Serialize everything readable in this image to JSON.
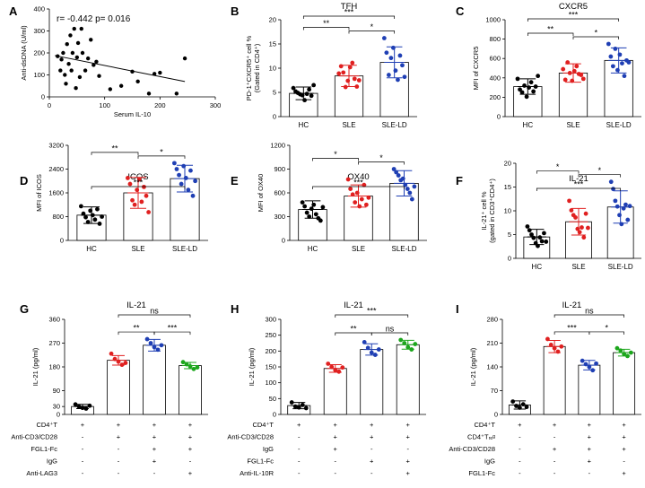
{
  "figure": {
    "panel_labels": [
      "A",
      "B",
      "C",
      "D",
      "E",
      "F",
      "G",
      "H",
      "I"
    ]
  },
  "colors": {
    "HC": "#000000",
    "SLE": "#e02020",
    "SLE-LD": "#1f3fb4",
    "green": "#1ca61c"
  },
  "chart_data": [
    {
      "id": "A",
      "type": "scatter",
      "annotation": "r= -0.442  p= 0.016",
      "xlabel": "Serum IL-10",
      "ylabel": "Anti-dsDNA (U/ml)",
      "xlim": [
        0,
        300
      ],
      "ylim": [
        0,
        400
      ],
      "xticks": [
        0,
        100,
        200,
        300
      ],
      "yticks": [
        0,
        100,
        200,
        300,
        400
      ],
      "points": [
        [
          15,
          185
        ],
        [
          20,
          120
        ],
        [
          22,
          170
        ],
        [
          25,
          200
        ],
        [
          28,
          100
        ],
        [
          30,
          60
        ],
        [
          32,
          240
        ],
        [
          35,
          150
        ],
        [
          38,
          280
        ],
        [
          40,
          120
        ],
        [
          42,
          200
        ],
        [
          45,
          310
        ],
        [
          48,
          40
        ],
        [
          50,
          180
        ],
        [
          52,
          245
        ],
        [
          55,
          90
        ],
        [
          58,
          310
        ],
        [
          60,
          200
        ],
        [
          65,
          120
        ],
        [
          70,
          175
        ],
        [
          75,
          260
        ],
        [
          80,
          145
        ],
        [
          85,
          160
        ],
        [
          90,
          95
        ],
        [
          110,
          35
        ],
        [
          130,
          50
        ],
        [
          150,
          115
        ],
        [
          160,
          70
        ],
        [
          180,
          15
        ],
        [
          190,
          105
        ],
        [
          200,
          110
        ],
        [
          230,
          15
        ],
        [
          245,
          175
        ]
      ],
      "regression": [
        [
          10,
          188
        ],
        [
          245,
          70
        ]
      ]
    },
    {
      "id": "B",
      "type": "bar",
      "title": "TFH",
      "ylabel": "PD-1⁺CXCR5⁺ cell %",
      "ylabel2": "(Gated in CD4⁺)",
      "categories": [
        "HC",
        "SLE",
        "SLE-LD"
      ],
      "ylim": [
        0,
        20
      ],
      "yticks": [
        0,
        5,
        10,
        15,
        20
      ],
      "values": [
        4.8,
        8.4,
        11.2
      ],
      "sd": [
        1.3,
        2.2,
        3.2
      ],
      "points": [
        [
          5.9,
          5.2,
          4.9,
          4.6,
          4.4,
          3.4,
          4.7,
          5.6,
          4.3,
          6.5
        ],
        [
          8.9,
          10.4,
          9.1,
          6.1,
          7.4,
          10.2,
          11.1,
          7.8,
          6.2,
          7.5
        ],
        [
          16.2,
          13.2,
          8.6,
          12.1,
          14.2,
          9.5,
          7.6,
          12.6,
          10.6,
          8.2
        ]
      ],
      "sig": [
        {
          "a": 0,
          "b": 1,
          "label": "**"
        },
        {
          "a": 1,
          "b": 2,
          "label": "*"
        },
        {
          "a": 0,
          "b": 2,
          "label": "***"
        }
      ]
    },
    {
      "id": "C",
      "type": "bar",
      "title": "CXCR5",
      "ylabel": "MFI of CXCR5",
      "categories": [
        "HC",
        "SLE",
        "SLE-LD"
      ],
      "ylim": [
        0,
        1000
      ],
      "yticks": [
        0,
        200,
        400,
        600,
        800,
        1000
      ],
      "values": [
        310,
        450,
        580
      ],
      "sd": [
        80,
        95,
        130
      ],
      "points": [
        [
          390,
          280,
          250,
          320,
          205,
          300,
          355,
          260,
          310,
          420
        ],
        [
          490,
          380,
          560,
          450,
          370,
          470,
          520,
          440,
          430,
          390
        ],
        [
          750,
          620,
          520,
          700,
          480,
          640,
          550,
          420,
          580,
          560
        ]
      ],
      "sig": [
        {
          "a": 0,
          "b": 1,
          "label": "**"
        },
        {
          "a": 1,
          "b": 2,
          "label": "*"
        },
        {
          "a": 0,
          "b": 2,
          "label": "***"
        }
      ]
    },
    {
      "id": "D",
      "type": "bar",
      "title": "ICOS",
      "ylabel": "MFI of ICOS",
      "categories": [
        "HC",
        "SLE",
        "SLE-LD"
      ],
      "ylim": [
        0,
        3200
      ],
      "yticks": [
        0,
        800,
        1600,
        2400,
        3200
      ],
      "values": [
        850,
        1600,
        2080
      ],
      "sd": [
        280,
        520,
        450
      ],
      "points": [
        [
          1150,
          900,
          780,
          620,
          1000,
          850,
          700,
          1050,
          560,
          800
        ],
        [
          2100,
          1900,
          1350,
          1200,
          1700,
          2050,
          1300,
          1800,
          1500,
          950
        ],
        [
          2600,
          2400,
          2200,
          1900,
          2500,
          2100,
          1700,
          2350,
          1500,
          2000
        ]
      ],
      "sig": [
        {
          "a": 0,
          "b": 1,
          "label": "**"
        },
        {
          "a": 1,
          "b": 2,
          "label": "*"
        },
        {
          "a": 0,
          "b": 2,
          "label": "***"
        }
      ]
    },
    {
      "id": "E",
      "type": "bar",
      "title": "OX40",
      "ylabel": "MFI of OX40",
      "categories": [
        "HC",
        "SLE",
        "SLE-LD"
      ],
      "ylim": [
        0,
        1200
      ],
      "yticks": [
        0,
        300,
        600,
        900,
        1200
      ],
      "values": [
        390,
        560,
        720
      ],
      "sd": [
        110,
        140,
        160
      ],
      "points": [
        [
          480,
          430,
          350,
          300,
          400,
          450,
          330,
          280,
          250,
          420
        ],
        [
          770,
          650,
          580,
          480,
          600,
          430,
          520,
          700,
          450,
          540
        ],
        [
          900,
          860,
          820,
          760,
          780,
          700,
          650,
          600,
          520,
          680
        ]
      ],
      "sig": [
        {
          "a": 0,
          "b": 1,
          "label": "*"
        },
        {
          "a": 1,
          "b": 2,
          "label": "*"
        },
        {
          "a": 0,
          "b": 2,
          "label": "***"
        }
      ]
    },
    {
      "id": "F",
      "type": "bar",
      "title": "IL-21",
      "ylabel": "IL-21⁺ cell %",
      "ylabel2": "(gated in CD3⁺CD4⁺)",
      "categories": [
        "HC",
        "SLE",
        "SLE-LD"
      ],
      "ylim": [
        0,
        20
      ],
      "yticks": [
        0,
        5,
        10,
        15,
        20
      ],
      "values": [
        4.5,
        7.7,
        10.8
      ],
      "sd": [
        1.6,
        2.8,
        3.4
      ],
      "points": [
        [
          6.7,
          5.9,
          5.0,
          4.3,
          3.2,
          2.6,
          4.4,
          3.6,
          5.3,
          3.5
        ],
        [
          12.1,
          10.1,
          9.1,
          8.6,
          6.2,
          5.5,
          6.5,
          4.4,
          9.4,
          6.4
        ],
        [
          16.1,
          14.6,
          12.1,
          10.9,
          9.1,
          7.2,
          10.5,
          11.3,
          8.1,
          11.0
        ]
      ],
      "sig": [
        {
          "a": 0,
          "b": 1,
          "label": "*"
        },
        {
          "a": 1,
          "b": 2,
          "label": "*"
        },
        {
          "a": 0,
          "b": 2,
          "label": "***"
        }
      ]
    },
    {
      "id": "G",
      "type": "bar",
      "title": "IL-21",
      "ylabel": "IL-21 (pg/ml)",
      "ylim": [
        0,
        360
      ],
      "yticks": [
        0,
        90,
        180,
        270,
        360,
        "30"
      ],
      "ytickvals": [
        0,
        30,
        90,
        180,
        270,
        360
      ],
      "yticklabels": [
        "0",
        "30",
        "90",
        "180",
        "270",
        "360"
      ],
      "values": [
        30,
        205,
        262,
        185
      ],
      "sd": [
        8,
        18,
        22,
        12
      ],
      "colors": [
        "HC",
        "SLE",
        "SLE-LD",
        "green"
      ],
      "points": [
        [
          38,
          30,
          25,
          22,
          33
        ],
        [
          230,
          210,
          200,
          188,
          195
        ],
        [
          285,
          270,
          255,
          245,
          262
        ],
        [
          198,
          190,
          182,
          172,
          178
        ]
      ],
      "sig": [
        {
          "a": 1,
          "b": 2,
          "label": "**"
        },
        {
          "a": 2,
          "b": 3,
          "label": "***"
        },
        {
          "a": 1,
          "b": 3,
          "label": "ns"
        }
      ],
      "table": {
        "rows": [
          {
            "label": "CD4⁺T",
            "marks": [
              "+",
              "+",
              "+",
              "+"
            ]
          },
          {
            "label": "Anti-CD3/CD28",
            "marks": [
              "-",
              "+",
              "+",
              "+"
            ]
          },
          {
            "label": "FGL1-Fc",
            "marks": [
              "-",
              "-",
              "+",
              "+"
            ]
          },
          {
            "label": "IgG",
            "marks": [
              "-",
              "-",
              "+",
              "-"
            ]
          },
          {
            "label": "Anti-LAG3",
            "marks": [
              "-",
              "-",
              "-",
              "+"
            ]
          }
        ]
      }
    },
    {
      "id": "H",
      "type": "bar",
      "title": "IL-21",
      "ylabel": "IL-21 (pg/ml)",
      "ylim": [
        0,
        300
      ],
      "ytickvals": [
        0,
        50,
        100,
        150,
        200,
        250,
        300
      ],
      "yticklabels": [
        "0",
        "50",
        "100",
        "150",
        "200",
        "250",
        "300"
      ],
      "values": [
        28,
        145,
        205,
        220
      ],
      "sd": [
        10,
        12,
        18,
        14
      ],
      "colors": [
        "HC",
        "SLE",
        "SLE-LD",
        "green"
      ],
      "points": [
        [
          38,
          25,
          22,
          30,
          20
        ],
        [
          160,
          150,
          140,
          135,
          148
        ],
        [
          228,
          210,
          195,
          188,
          205
        ],
        [
          235,
          225,
          212,
          205,
          222
        ]
      ],
      "sig": [
        {
          "a": 1,
          "b": 2,
          "label": "**"
        },
        {
          "a": 2,
          "b": 3,
          "label": "ns"
        },
        {
          "a": 1,
          "b": 3,
          "label": "***"
        }
      ],
      "table": {
        "rows": [
          {
            "label": "CD4⁺T",
            "marks": [
              "+",
              "+",
              "+",
              "+"
            ]
          },
          {
            "label": "Anti-CD3/CD28",
            "marks": [
              "-",
              "+",
              "+",
              "+"
            ]
          },
          {
            "label": "IgG",
            "marks": [
              "-",
              "+",
              "-",
              "-"
            ]
          },
          {
            "label": "FGL1-Fc",
            "marks": [
              "-",
              "-",
              "+",
              "+"
            ]
          },
          {
            "label": "Anti-IL-10R",
            "marks": [
              "-",
              "-",
              "-",
              "+"
            ]
          }
        ]
      }
    },
    {
      "id": "I",
      "type": "bar",
      "title": "IL-21",
      "ylabel": "IL-21 (pg/ml)",
      "ylim": [
        0,
        280
      ],
      "ytickvals": [
        0,
        70,
        140,
        210,
        280
      ],
      "yticklabels": [
        "0",
        "70",
        "140",
        "210",
        "280"
      ],
      "values": [
        28,
        200,
        145,
        182
      ],
      "sd": [
        12,
        18,
        14,
        10
      ],
      "colors": [
        "HC",
        "SLE",
        "SLE-LD",
        "green"
      ],
      "points": [
        [
          38,
          25,
          20,
          30,
          22
        ],
        [
          222,
          205,
          195,
          185,
          200
        ],
        [
          158,
          148,
          140,
          130,
          150
        ],
        [
          195,
          188,
          178,
          172,
          182
        ]
      ],
      "sig": [
        {
          "a": 1,
          "b": 2,
          "label": "***"
        },
        {
          "a": 2,
          "b": 3,
          "label": "*"
        },
        {
          "a": 1,
          "b": 3,
          "label": "ns"
        }
      ],
      "table": {
        "rows": [
          {
            "label": "CD4⁺T",
            "marks": [
              "+",
              "+",
              "+",
              "+"
            ]
          },
          {
            "label": "CD4⁺Tᵣₑᵍ",
            "marks": [
              "-",
              "-",
              "+",
              "+"
            ]
          },
          {
            "label": "Anti-CD3/CD28",
            "marks": [
              "-",
              "+",
              "+",
              "+"
            ]
          },
          {
            "label": "IgG",
            "marks": [
              "-",
              "-",
              "+",
              "-"
            ]
          },
          {
            "label": "FGL1-Fc",
            "marks": [
              "-",
              "-",
              "-",
              "+"
            ]
          }
        ]
      }
    }
  ]
}
